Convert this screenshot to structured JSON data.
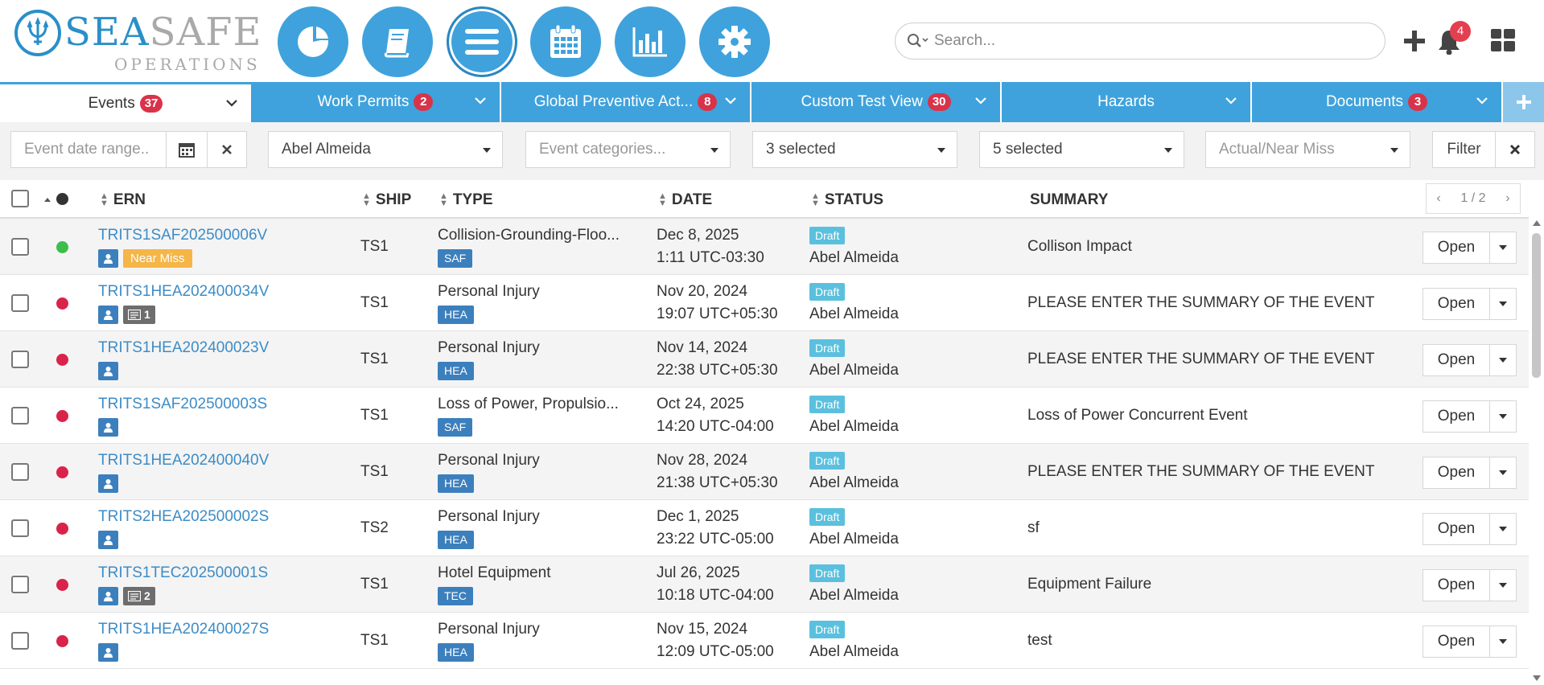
{
  "brand": {
    "name_part1": "SEA",
    "name_part2": "SAFE",
    "subtitle": "OPERATIONS",
    "primary_color": "#3fa2dc"
  },
  "nav": [
    {
      "name": "dashboard",
      "icon": "pie-chart-icon"
    },
    {
      "name": "logbook",
      "icon": "book-icon"
    },
    {
      "name": "menu",
      "icon": "list-icon",
      "active": true
    },
    {
      "name": "calendar",
      "icon": "calendar-icon"
    },
    {
      "name": "reports",
      "icon": "bar-chart-icon"
    },
    {
      "name": "settings",
      "icon": "gear-icon"
    }
  ],
  "search": {
    "placeholder": "Search...",
    "value": ""
  },
  "header": {
    "notification_count": "4"
  },
  "tabs": [
    {
      "label": "Events",
      "count": "37",
      "active": true
    },
    {
      "label": "Work Permits",
      "count": "2"
    },
    {
      "label": "Global Preventive Act...",
      "count": "8"
    },
    {
      "label": "Custom Test View",
      "count": "30"
    },
    {
      "label": "Hazards",
      "count": ""
    },
    {
      "label": "Documents",
      "count": "3"
    }
  ],
  "filters": {
    "date_range_placeholder": "Event date range..",
    "owner": "Abel Almeida",
    "categories_placeholder": "Event categories...",
    "select_a": "3 selected",
    "select_b": "5 selected",
    "actual_near_miss_placeholder": "Actual/Near Miss",
    "filter_label": "Filter"
  },
  "table": {
    "columns": {
      "ern": "ERN",
      "ship": "SHIP",
      "type": "TYPE",
      "date": "DATE",
      "status": "STATUS",
      "summary": "SUMMARY"
    },
    "pager": "1 / 2",
    "open_label": "Open",
    "rows": [
      {
        "ern": "TRITS1SAF202500006V",
        "dot": "#3cbf4a",
        "near_miss": "Near Miss",
        "attachments": "",
        "ship": "TS1",
        "type": "Collision-Grounding-Floo...",
        "code": "SAF",
        "date": "Dec 8, 2025",
        "time": "1:11 UTC-03:30",
        "status": "Draft",
        "owner": "Abel Almeida",
        "summary": "Collison Impact"
      },
      {
        "ern": "TRITS1HEA202400034V",
        "dot": "#d9234a",
        "near_miss": "",
        "attachments": "1",
        "ship": "TS1",
        "type": "Personal Injury",
        "code": "HEA",
        "date": "Nov 20, 2024",
        "time": "19:07 UTC+05:30",
        "status": "Draft",
        "owner": "Abel Almeida",
        "summary": "PLEASE ENTER THE SUMMARY OF THE EVENT"
      },
      {
        "ern": "TRITS1HEA202400023V",
        "dot": "#d9234a",
        "near_miss": "",
        "attachments": "",
        "ship": "TS1",
        "type": "Personal Injury",
        "code": "HEA",
        "date": "Nov 14, 2024",
        "time": "22:38 UTC+05:30",
        "status": "Draft",
        "owner": "Abel Almeida",
        "summary": "PLEASE ENTER THE SUMMARY OF THE EVENT"
      },
      {
        "ern": "TRITS1SAF202500003S",
        "dot": "#d9234a",
        "near_miss": "",
        "attachments": "",
        "ship": "TS1",
        "type": "Loss of Power, Propulsio...",
        "code": "SAF",
        "date": "Oct 24, 2025",
        "time": "14:20 UTC-04:00",
        "status": "Draft",
        "owner": "Abel Almeida",
        "summary": "Loss of Power Concurrent Event"
      },
      {
        "ern": "TRITS1HEA202400040V",
        "dot": "#d9234a",
        "near_miss": "",
        "attachments": "",
        "ship": "TS1",
        "type": "Personal Injury",
        "code": "HEA",
        "date": "Nov 28, 2024",
        "time": "21:38 UTC+05:30",
        "status": "Draft",
        "owner": "Abel Almeida",
        "summary": "PLEASE ENTER THE SUMMARY OF THE EVENT"
      },
      {
        "ern": "TRITS2HEA202500002S",
        "dot": "#d9234a",
        "near_miss": "",
        "attachments": "",
        "ship": "TS2",
        "type": "Personal Injury",
        "code": "HEA",
        "date": "Dec 1, 2025",
        "time": "23:22 UTC-05:00",
        "status": "Draft",
        "owner": "Abel Almeida",
        "summary": "sf"
      },
      {
        "ern": "TRITS1TEC202500001S",
        "dot": "#d9234a",
        "near_miss": "",
        "attachments": "2",
        "ship": "TS1",
        "type": "Hotel Equipment",
        "code": "TEC",
        "date": "Jul 26, 2025",
        "time": "10:18 UTC-04:00",
        "status": "Draft",
        "owner": "Abel Almeida",
        "summary": "Equipment Failure"
      },
      {
        "ern": "TRITS1HEA202400027S",
        "dot": "#d9234a",
        "near_miss": "",
        "attachments": "",
        "ship": "TS1",
        "type": "Personal Injury",
        "code": "HEA",
        "date": "Nov 15, 2024",
        "time": "12:09 UTC-05:00",
        "status": "Draft",
        "owner": "Abel Almeida",
        "summary": "test"
      }
    ]
  }
}
